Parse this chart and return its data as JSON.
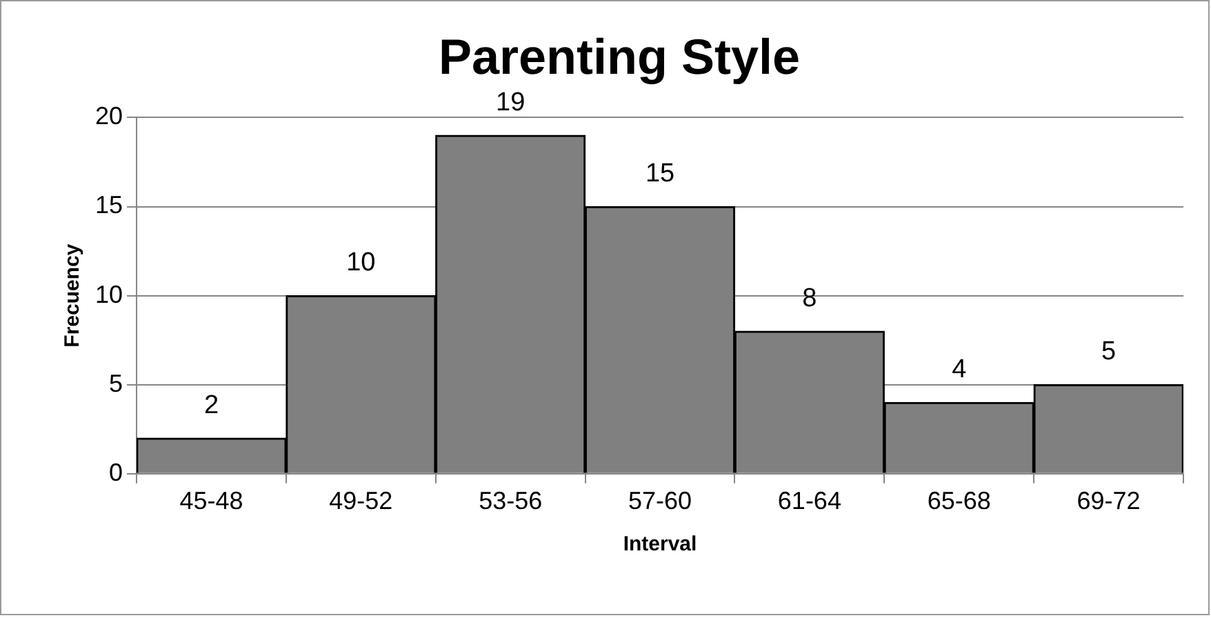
{
  "chart_data": {
    "type": "bar",
    "title": "Parenting Style",
    "xlabel": "Interval",
    "ylabel": "Frecuency",
    "categories": [
      "45-48",
      "49-52",
      "53-56",
      "57-60",
      "61-64",
      "65-68",
      "69-72"
    ],
    "values": [
      2,
      10,
      19,
      15,
      8,
      4,
      5
    ],
    "color": "#808080",
    "ylim": [
      0,
      20
    ],
    "yticks": [
      0,
      5,
      10,
      15,
      20
    ],
    "grid": "y",
    "data_labels": true
  }
}
